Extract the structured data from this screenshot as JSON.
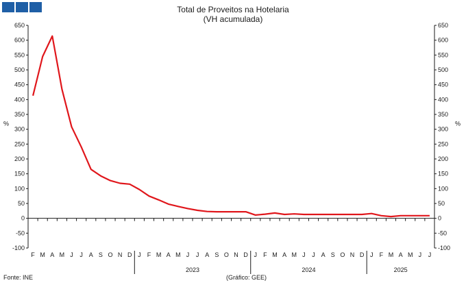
{
  "chart_data": {
    "type": "line",
    "title": "Total de Proveitos na Hotelaria",
    "subtitle": "(VH acumulada)",
    "ylabel_left": "%",
    "ylabel_right": "%",
    "ylim": [
      -100,
      650
    ],
    "yticks": [
      650,
      600,
      550,
      500,
      450,
      400,
      350,
      300,
      250,
      200,
      150,
      100,
      50,
      0,
      -50,
      -100
    ],
    "month_labels": [
      "F",
      "M",
      "A",
      "M",
      "J",
      "J",
      "A",
      "S",
      "O",
      "N",
      "D",
      "J",
      "F",
      "M",
      "A",
      "M",
      "J",
      "J",
      "A",
      "S",
      "O",
      "N",
      "D",
      "J",
      "F",
      "M",
      "A",
      "M",
      "J",
      "J",
      "A",
      "S",
      "O",
      "N",
      "D",
      "J",
      "F",
      "M",
      "A",
      "M",
      "J",
      "J"
    ],
    "year_labels": [
      {
        "label": "2023",
        "start_index": 11,
        "end_index": 22
      },
      {
        "label": "2024",
        "start_index": 23,
        "end_index": 34
      },
      {
        "label": "2025",
        "start_index": 35,
        "end_index": 41
      }
    ],
    "series": [
      {
        "color": "#e0161b",
        "values": [
          413,
          545,
          614,
          435,
          308,
          240,
          165,
          143,
          127,
          118,
          115,
          97,
          75,
          62,
          48,
          40,
          33,
          27,
          23,
          22,
          22,
          22,
          22,
          11,
          14,
          18,
          13,
          15,
          13,
          13,
          13,
          13,
          13,
          13,
          13,
          16,
          9,
          6,
          9,
          9,
          9,
          9
        ]
      }
    ],
    "grid": false
  },
  "footer": {
    "source": "Fonte: INE",
    "credit": "(Gráfico: GEE)"
  },
  "colors": {
    "logo": "#1f5fa6",
    "axis": "#1a1a1a"
  }
}
